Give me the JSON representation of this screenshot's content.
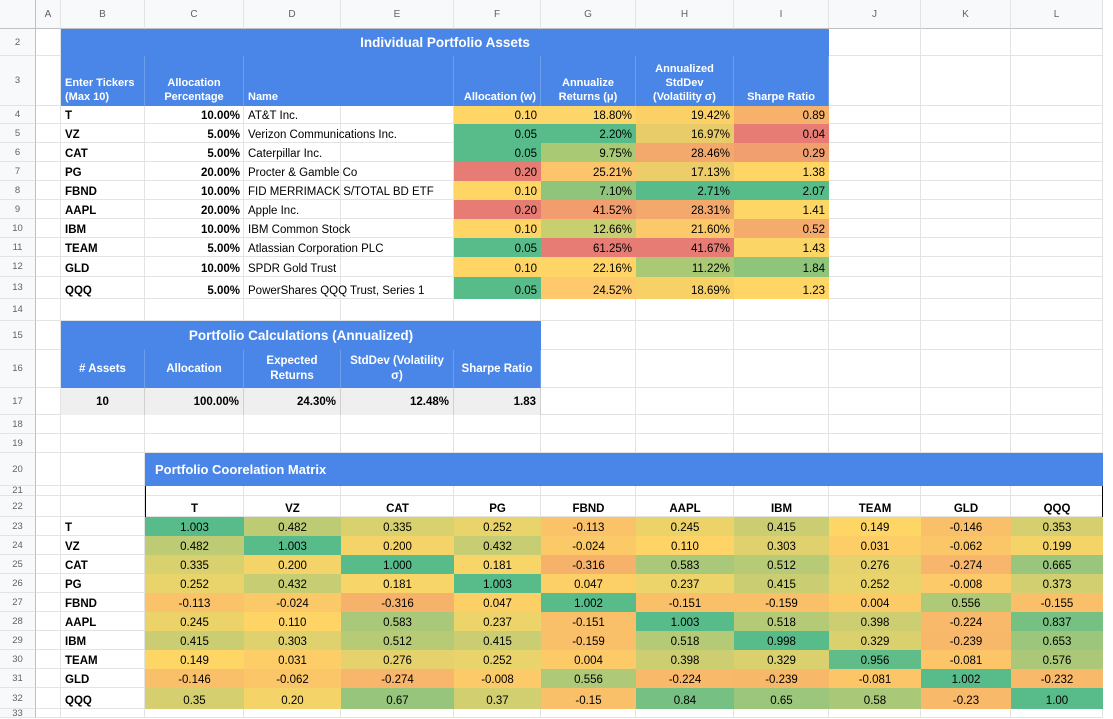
{
  "column_headers": [
    "A",
    "B",
    "C",
    "D",
    "E",
    "F",
    "G",
    "H",
    "I",
    "J",
    "K",
    "L"
  ],
  "row_numbers": [
    "2",
    "3",
    "4",
    "5",
    "6",
    "7",
    "8",
    "9",
    "10",
    "11",
    "12",
    "13",
    "14",
    "15",
    "16",
    "17",
    "18",
    "19",
    "20",
    "21",
    "22",
    "23",
    "24",
    "25",
    "26",
    "27",
    "28",
    "29",
    "30",
    "31",
    "32",
    "33"
  ],
  "assets": {
    "title": "Individual Portfolio Assets",
    "headers": {
      "ticker": "Enter Tickers (Max 10)",
      "alloc_pct": "Allocation Percentage",
      "name": "Name",
      "alloc_w": "Allocation (w)",
      "returns": "Annualize Returns (μ)",
      "stddev": "Annualized StdDev (Volatility σ)",
      "sharpe": "Sharpe Ratio"
    },
    "rows": [
      {
        "ticker": "T",
        "pct": "10.00%",
        "name": "AT&T Inc.",
        "w": "0.10",
        "ret": "18.80%",
        "sd": "19.42%",
        "sh": "0.89",
        "cw": "#ffd666",
        "cr": "#fcd66b",
        "cs": "#fbd166",
        "ch": "#f6b26b"
      },
      {
        "ticker": "VZ",
        "pct": "5.00%",
        "name": "Verizon Communications Inc.",
        "w": "0.05",
        "ret": "2.20%",
        "sd": "16.97%",
        "sh": "0.04",
        "cw": "#57bb8a",
        "cr": "#57bb8a",
        "cs": "#e9cc6a",
        "ch": "#e67c73"
      },
      {
        "ticker": "CAT",
        "pct": "5.00%",
        "name": "Caterpillar Inc.",
        "w": "0.05",
        "ret": "9.75%",
        "sd": "28.46%",
        "sh": "0.29",
        "cw": "#57bb8a",
        "cr": "#a9c974",
        "cs": "#f4a96c",
        "ch": "#f19f6f"
      },
      {
        "ticker": "PG",
        "pct": "20.00%",
        "name": "Procter & Gamble Co",
        "w": "0.20",
        "ret": "25.21%",
        "sd": "17.13%",
        "sh": "1.38",
        "cw": "#e67c73",
        "cr": "#fcc56b",
        "cs": "#eccd69",
        "ch": "#ffd666"
      },
      {
        "ticker": "FBND",
        "pct": "10.00%",
        "name": "FID MERRIMACK S/TOTAL BD ETF",
        "w": "0.10",
        "ret": "7.10%",
        "sd": "2.71%",
        "sh": "2.07",
        "cw": "#ffd666",
        "cr": "#8fc47b",
        "cs": "#57bb8a",
        "ch": "#57bb8a"
      },
      {
        "ticker": "AAPL",
        "pct": "20.00%",
        "name": "Apple Inc.",
        "w": "0.20",
        "ret": "41.52%",
        "sd": "28.31%",
        "sh": "1.41",
        "cw": "#e67c73",
        "cr": "#f29d6e",
        "cs": "#f4a96c",
        "ch": "#fdd666"
      },
      {
        "ticker": "IBM",
        "pct": "10.00%",
        "name": "IBM Common Stock",
        "w": "0.10",
        "ret": "12.66%",
        "sd": "21.60%",
        "sh": "0.52",
        "cw": "#ffd666",
        "cr": "#c8cf6e",
        "cs": "#fbc86a",
        "ch": "#f5ab6c"
      },
      {
        "ticker": "TEAM",
        "pct": "5.00%",
        "name": "Atlassian Corporation PLC",
        "w": "0.05",
        "ret": "61.25%",
        "sd": "41.67%",
        "sh": "1.43",
        "cw": "#57bb8a",
        "cr": "#e67c73",
        "cs": "#e67c73",
        "ch": "#fbd666"
      },
      {
        "ticker": "GLD",
        "pct": "10.00%",
        "name": "SPDR Gold Trust",
        "w": "0.10",
        "ret": "22.16%",
        "sd": "11.22%",
        "sh": "1.84",
        "cw": "#ffd666",
        "cr": "#fed566",
        "cs": "#a9c974",
        "ch": "#8fc47b"
      },
      {
        "ticker": "QQQ",
        "pct": "5.00%",
        "name": "PowerShares QQQ Trust, Series 1",
        "w": "0.05",
        "ret": "24.52%",
        "sd": "18.69%",
        "sh": "1.23",
        "cw": "#57bb8a",
        "cr": "#fdc96a",
        "cs": "#f8d166",
        "ch": "#ffd666"
      }
    ]
  },
  "portfolio": {
    "title": "Portfolio Calculations (Annualized)",
    "headers": {
      "assets": "# Assets",
      "allocation": "Allocation",
      "expected": "Expected Returns",
      "stddev": "StdDev (Volatility σ)",
      "sharpe": "Sharpe Ratio"
    },
    "values": {
      "assets": "10",
      "allocation": "100.00%",
      "expected": "24.30%",
      "stddev": "12.48%",
      "sharpe": "1.83"
    }
  },
  "matrix": {
    "title": "Portfolio Coorelation Matrix",
    "labels": [
      "T",
      "VZ",
      "CAT",
      "PG",
      "FBND",
      "AAPL",
      "IBM",
      "TEAM",
      "GLD",
      "QQQ"
    ],
    "rows": [
      [
        "1.003",
        "0.482",
        "0.335",
        "0.252",
        "-0.113",
        "0.245",
        "0.415",
        "0.149",
        "-0.146",
        "0.353"
      ],
      [
        "0.482",
        "1.003",
        "0.200",
        "0.432",
        "-0.024",
        "0.110",
        "0.303",
        "0.031",
        "-0.062",
        "0.199"
      ],
      [
        "0.335",
        "0.200",
        "1.000",
        "0.181",
        "-0.316",
        "0.583",
        "0.512",
        "0.276",
        "-0.274",
        "0.665"
      ],
      [
        "0.252",
        "0.432",
        "0.181",
        "1.003",
        "0.047",
        "0.237",
        "0.415",
        "0.252",
        "-0.008",
        "0.373"
      ],
      [
        "-0.113",
        "-0.024",
        "-0.316",
        "0.047",
        "1.002",
        "-0.151",
        "-0.159",
        "0.004",
        "0.556",
        "-0.155"
      ],
      [
        "0.245",
        "0.110",
        "0.583",
        "0.237",
        "-0.151",
        "1.003",
        "0.518",
        "0.398",
        "-0.224",
        "0.837"
      ],
      [
        "0.415",
        "0.303",
        "0.512",
        "0.415",
        "-0.159",
        "0.518",
        "0.998",
        "0.329",
        "-0.239",
        "0.653"
      ],
      [
        "0.149",
        "0.031",
        "0.276",
        "0.252",
        "0.004",
        "0.398",
        "0.329",
        "0.956",
        "-0.081",
        "0.576"
      ],
      [
        "-0.146",
        "-0.062",
        "-0.274",
        "-0.008",
        "0.556",
        "-0.224",
        "-0.239",
        "-0.081",
        "1.002",
        "-0.232"
      ],
      [
        "0.35",
        "0.20",
        "0.67",
        "0.37",
        "-0.15",
        "0.84",
        "0.65",
        "0.58",
        "-0.23",
        "1.00"
      ]
    ]
  },
  "colors": {
    "header_blue": "#4a86e8",
    "calc_gray": "#efefef",
    "green": "#57bb8a",
    "yellow": "#ffd666",
    "red": "#e67c73"
  }
}
